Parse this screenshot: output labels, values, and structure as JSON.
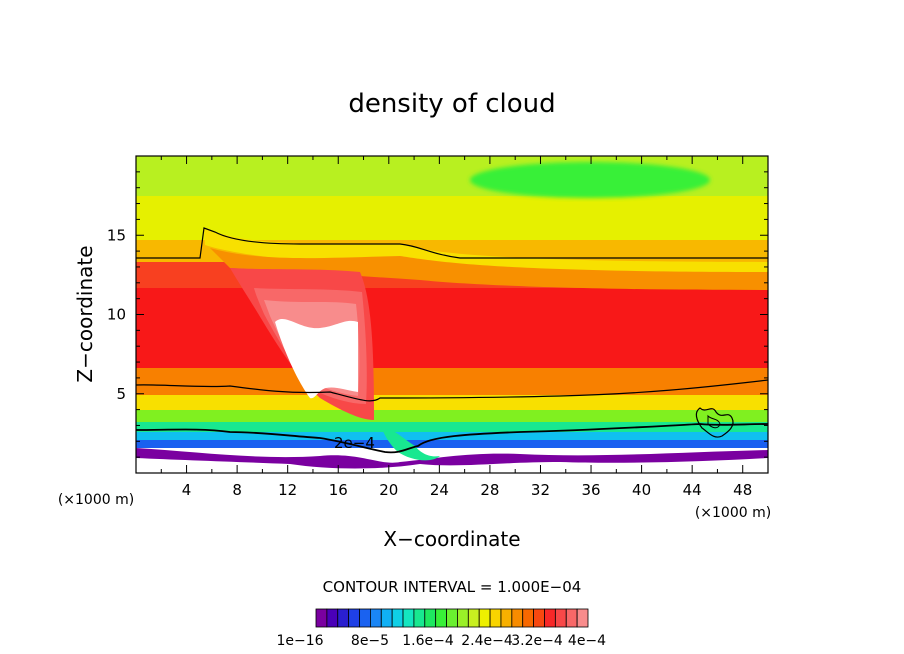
{
  "chart_data": {
    "type": "heatmap",
    "title": "density of cloud",
    "xlabel": "X−coordinate",
    "ylabel": "Z−coordinate",
    "x_unit_left": "(×1000 m)",
    "x_unit_right": "(×1000 m)",
    "xlim": [
      0,
      50
    ],
    "ylim": [
      0,
      20
    ],
    "x_ticks": [
      4,
      8,
      12,
      16,
      20,
      24,
      28,
      32,
      36,
      40,
      44,
      48
    ],
    "y_ticks": [
      5,
      10,
      15
    ],
    "contour_interval_text": "CONTOUR INTERVAL = 1.000E−04",
    "contour_label": "2e−4",
    "colorbar_labels": [
      "1e−16",
      "8e−5",
      "1.6e−4",
      "2.4e−4",
      "3.2e−4",
      "4e−4"
    ],
    "colorbar_colors": [
      "#7a00a0",
      "#4a00b8",
      "#2a1fd0",
      "#1f40e6",
      "#1a62f0",
      "#1a86f5",
      "#10b0f5",
      "#0fd0e6",
      "#14e6c0",
      "#18e890",
      "#1ee860",
      "#38f038",
      "#6af030",
      "#9af028",
      "#c8f020",
      "#eef000",
      "#f8d400",
      "#f8b000",
      "#f88c00",
      "#f86800",
      "#f84810",
      "#f82828",
      "#f84848",
      "#f86868",
      "#f88c8c"
    ],
    "regions": [
      {
        "name": "upper-band",
        "z_range": [
          15,
          20
        ],
        "value": "1.6e-4"
      },
      {
        "name": "core-max",
        "x_range": [
          11,
          18
        ],
        "z_range": [
          5,
          10
        ],
        "value": "> 4e-4"
      },
      {
        "name": "contour-2e-4",
        "z_approx": 3,
        "value": "2e-4"
      }
    ]
  }
}
